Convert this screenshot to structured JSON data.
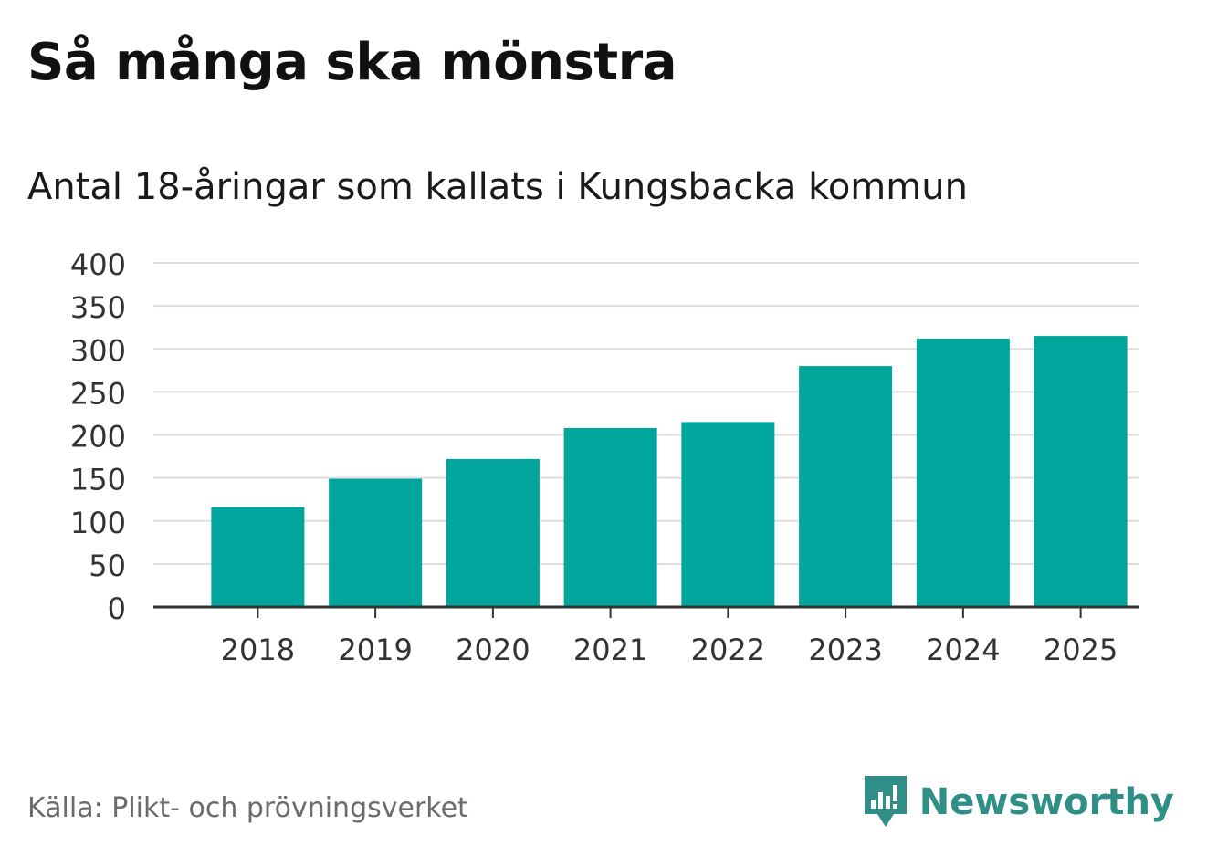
{
  "header": {
    "title": "Så många ska mönstra",
    "subtitle": "Antal 18-åringar som kallats i Kungsbacka kommun"
  },
  "footer": {
    "source": "Källa: Plikt- och prövningsverket",
    "brand": "Newsworthy",
    "brand_icon": "newsworthy-logo-icon"
  },
  "colors": {
    "bar": "#00a59b",
    "grid": "#dddddd",
    "axis": "#333333",
    "brand": "#2f8f86"
  },
  "chart_data": {
    "type": "bar",
    "title": "Så många ska mönstra",
    "subtitle": "Antal 18-åringar som kallats i Kungsbacka kommun",
    "xlabel": "",
    "ylabel": "",
    "categories": [
      "2018",
      "2019",
      "2020",
      "2021",
      "2022",
      "2023",
      "2024",
      "2025"
    ],
    "series": [
      {
        "name": "Antal 18-åringar",
        "values": [
          116,
          149,
          172,
          208,
          215,
          280,
          312,
          315
        ]
      }
    ],
    "ylim": [
      0,
      400
    ],
    "yticks": [
      0,
      50,
      100,
      150,
      200,
      250,
      300,
      350,
      400
    ],
    "grid": true,
    "legend": "none"
  }
}
